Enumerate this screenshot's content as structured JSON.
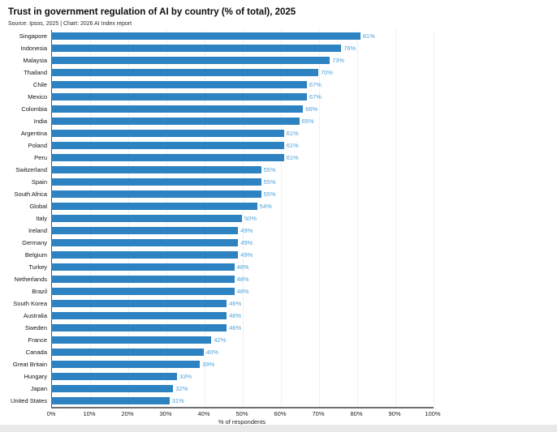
{
  "header": {
    "title": "Trust in government regulation of AI by country (% of total), 2025",
    "subtitle": "Source: Ipsos, 2025 | Chart: 2026 AI Index report"
  },
  "chart_data": {
    "type": "bar",
    "orientation": "horizontal",
    "title": "Trust in government regulation of AI by country (% of total), 2025",
    "source_note": "Source: Ipsos, 2025 | Chart: 2026 AI Index report",
    "categories": [
      "Singapore",
      "Indonesia",
      "Malaysia",
      "Thailand",
      "Chile",
      "Mexico",
      "Colombia",
      "India",
      "Argentina",
      "Poland",
      "Peru",
      "Switzerland",
      "Spain",
      "South Africa",
      "Global",
      "Italy",
      "Ireland",
      "Germany",
      "Belgium",
      "Turkey",
      "Netherlands",
      "Brazil",
      "South Korea",
      "Australia",
      "Sweden",
      "France",
      "Canada",
      "Great Britain",
      "Hungary",
      "Japan",
      "United States"
    ],
    "values": [
      81,
      76,
      73,
      70,
      67,
      67,
      66,
      65,
      61,
      61,
      61,
      55,
      55,
      55,
      54,
      50,
      49,
      49,
      49,
      48,
      48,
      48,
      46,
      46,
      46,
      42,
      40,
      39,
      33,
      32,
      31
    ],
    "value_labels": [
      "81%",
      "76%",
      "73%",
      "70%",
      "67%",
      "67%",
      "66%",
      "65%",
      "61%",
      "61%",
      "61%",
      "55%",
      "55%",
      "55%",
      "54%",
      "50%",
      "49%",
      "49%",
      "49%",
      "48%",
      "48%",
      "48%",
      "46%",
      "46%",
      "46%",
      "42%",
      "40%",
      "39%",
      "33%",
      "32%",
      "31%"
    ],
    "xlabel": "% of respondents",
    "x_ticks": [
      "0%",
      "10%",
      "20%",
      "30%",
      "40%",
      "50%",
      "60%",
      "70%",
      "80%",
      "90%",
      "100%"
    ],
    "xlim": [
      0,
      100
    ],
    "grid": "vertical, very light, every 10%",
    "legend": "none",
    "bar_color": "#2d82c2",
    "value_label_color": "#4da3dc"
  }
}
